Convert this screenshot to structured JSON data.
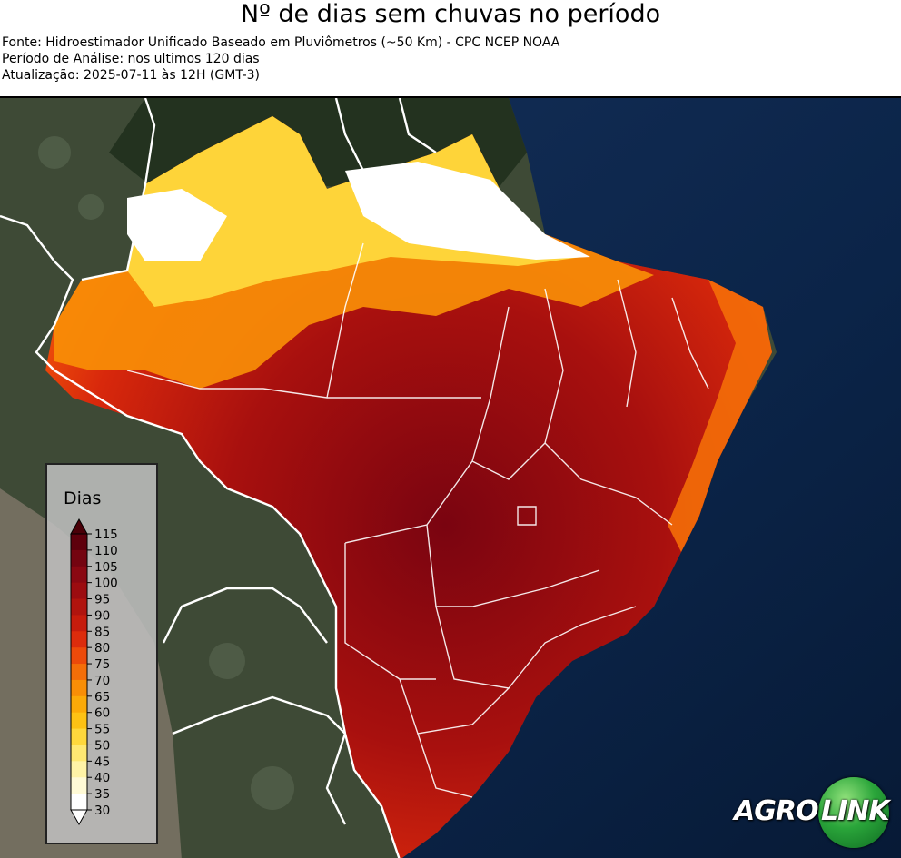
{
  "title": "Nº de dias sem chuvas no período",
  "source_line": "Fonte: Hidroestimador Unificado Baseado em Pluviômetros (~50 Km) - CPC NCEP NOAA",
  "period_line": "Período de Análise: nos ultimos 120 dias",
  "update_line": "Atualização: 2025-07-11 às 12H (GMT-3)",
  "legend": {
    "title": "Dias",
    "ticks": [
      "115",
      "110",
      "105",
      "100",
      "95",
      "90",
      "85",
      "80",
      "75",
      "70",
      "65",
      "60",
      "55",
      "50",
      "45",
      "40",
      "35",
      "30"
    ],
    "colors": [
      "#4a0008",
      "#5e000c",
      "#740410",
      "#8a0812",
      "#9c0c10",
      "#b0140e",
      "#c61c0c",
      "#dc2c0c",
      "#ec4a0a",
      "#f46e08",
      "#f88e06",
      "#fbaa08",
      "#fdc214",
      "#fed83c",
      "#fee872",
      "#fff3a6",
      "#fffad6",
      "#ffffff"
    ]
  },
  "logo": {
    "part1": "AGRO",
    "part2": "LINK"
  },
  "colors": {
    "ocean": "#0b2448",
    "land": "#3e4a36",
    "border": "#ffffff"
  }
}
